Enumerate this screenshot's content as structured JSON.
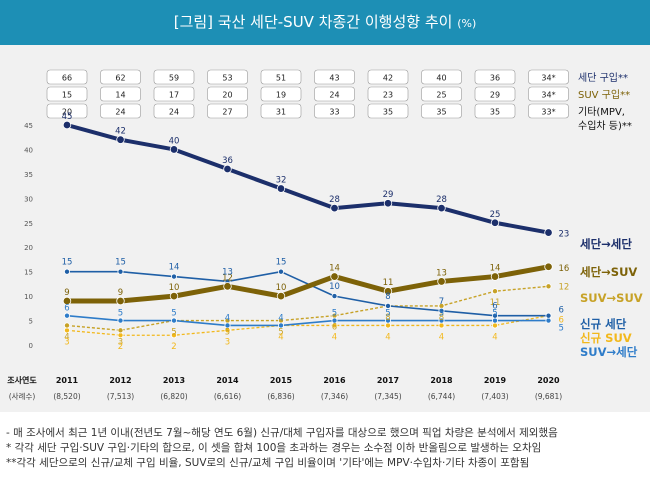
{
  "chart_data": {
    "type": "line",
    "title": "[그림] 국산 세단-SUV 차종간 이행성향 추이",
    "unit": "(%)",
    "x": [
      "2011",
      "2012",
      "2013",
      "2014",
      "2015",
      "2016",
      "2017",
      "2018",
      "2019",
      "2020"
    ],
    "x_axis_label": "조사연도",
    "sample_label": "(사례수)",
    "sample_sizes": [
      "(8,520)",
      "(7,513)",
      "(6,820)",
      "(6,616)",
      "(6,836)",
      "(7,346)",
      "(7,345)",
      "(6,744)",
      "(7,403)",
      "(9,681)"
    ],
    "ylim": [
      0,
      45
    ],
    "yticks": [
      "0",
      "5",
      "10",
      "15",
      "20",
      "25",
      "30",
      "35",
      "40",
      "45"
    ],
    "series": [
      {
        "name": "세단→세단",
        "values": [
          45,
          42,
          40,
          36,
          32,
          28,
          29,
          28,
          25,
          23
        ],
        "color": "#1c2f6b"
      },
      {
        "name": "세단→SUV",
        "values": [
          9,
          9,
          10,
          12,
          10,
          14,
          11,
          13,
          14,
          16
        ],
        "color": "#7d6208"
      },
      {
        "name": "SUV→SUV",
        "values": [
          4,
          3,
          5,
          5,
          5,
          6,
          8,
          8,
          11,
          12
        ],
        "color": "#c7a227"
      },
      {
        "name": "신규 세단",
        "values": [
          15,
          15,
          14,
          13,
          15,
          10,
          8,
          7,
          6,
          6
        ],
        "color": "#1f5fa6"
      },
      {
        "name": "신규 SUV",
        "values": [
          3,
          2,
          2,
          3,
          4,
          4,
          4,
          4,
          4,
          6
        ],
        "color": "#f2b81c"
      },
      {
        "name": "SUV→세단",
        "values": [
          6,
          5,
          5,
          4,
          4,
          5,
          5,
          5,
          5,
          5
        ],
        "color": "#2e7cc9"
      }
    ],
    "purchase_table": [
      {
        "label": "세단 구입**",
        "values": [
          "66",
          "62",
          "59",
          "53",
          "51",
          "43",
          "42",
          "40",
          "36",
          "34*"
        ],
        "color": "#1c2f6b"
      },
      {
        "label": "SUV 구입**",
        "values": [
          "15",
          "14",
          "17",
          "20",
          "19",
          "24",
          "23",
          "25",
          "29",
          "34*"
        ],
        "color": "#7d6208"
      },
      {
        "label": "기타(MPV, 수입차 등)**",
        "values": [
          "20",
          "24",
          "24",
          "27",
          "31",
          "33",
          "35",
          "35",
          "35",
          "33*"
        ],
        "color": "#111111"
      }
    ],
    "grid": false
  },
  "footnotes": [
    "- 매 조사에서 최근 1년 이내(전년도 7월~해당 연도 6월) 신규/대체 구입자를 대상으로 했으며 픽업 차량은 분석에서 제외했음",
    "* 각각 세단 구입·SUV 구입·기타의 합으로, 이 셋을 합쳐 100을 초과하는 경우는 소수점 이하 반올림으로 발생하는 오차임",
    "**각각 세단으로의 신규/교체 구입 비율, SUV로의 신규/교체 구입 비율이며 '기타'에는 MPV·수입차·기타 차종이 포함됨"
  ]
}
